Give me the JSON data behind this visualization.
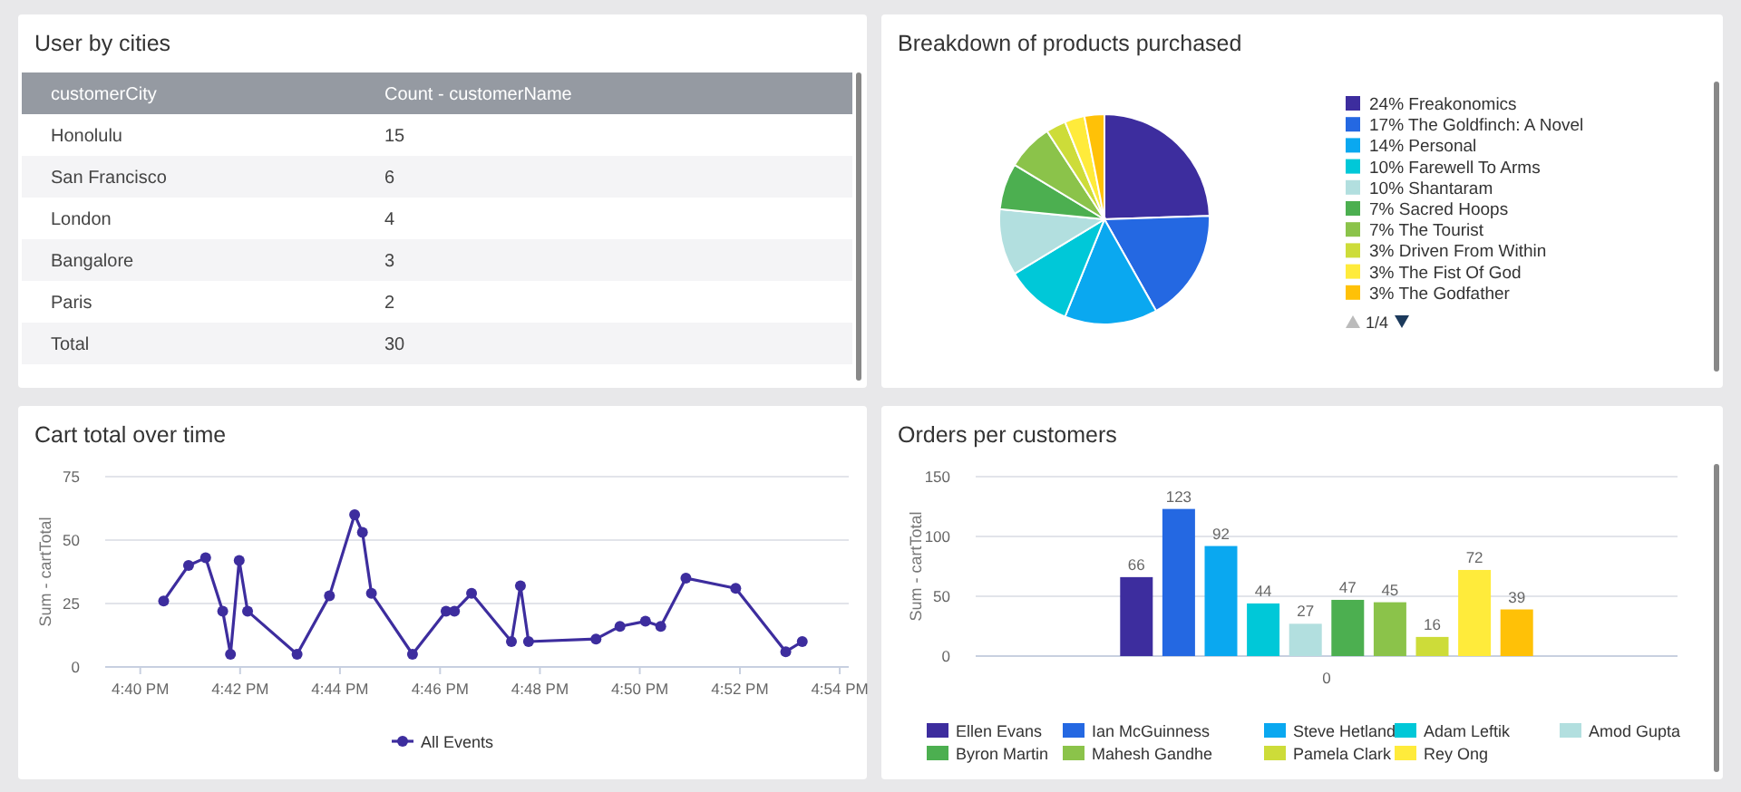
{
  "chart_data": [
    {
      "type": "other",
      "title": "User by cities",
      "xlabel": "customerCity",
      "ylabel": "Count - customerName",
      "categories": [
        "Honolulu",
        "San Francisco",
        "London",
        "Bangalore",
        "Paris",
        "Total"
      ],
      "values": [
        15,
        6,
        4,
        3,
        2,
        30
      ],
      "data_labels": true
    },
    {
      "type": "pie",
      "title": "Breakdown of products purchased",
      "legend": "right",
      "annotations": [
        "1/4"
      ],
      "categories": [
        "Freakonomics",
        "The Goldfinch: A Novel",
        "Personal",
        "Farewell To Arms",
        "Shantaram",
        "Sacred Hoops",
        "The Tourist",
        "Driven From Within",
        "The Fist Of God",
        "The Godfather"
      ],
      "values": [
        24,
        17,
        14,
        10,
        10,
        7,
        7,
        3,
        3,
        3
      ],
      "value_labels": [
        "24%",
        "17%",
        "14%",
        "10%",
        "10%",
        "7%",
        "7%",
        "3%",
        "3%",
        "3%"
      ],
      "colors": [
        "#3d2d9e",
        "#2468e2",
        "#0aa8f0",
        "#00c8d8",
        "#b2dfdf",
        "#4caf50",
        "#8bc34a",
        "#cddc39",
        "#ffeb3b",
        "#ffc107"
      ]
    },
    {
      "type": "line",
      "title": "Cart total over time",
      "ylabel": "Sum - cartTotal",
      "grid": "y",
      "legend": "bottom",
      "marker": "circle",
      "xlim": [
        16.655,
        16.903
      ],
      "xticks": [
        {
          "value": 16.6667,
          "label": "4:40 PM"
        },
        {
          "value": 16.7,
          "label": "4:42 PM"
        },
        {
          "value": 16.7333,
          "label": "4:44 PM"
        },
        {
          "value": 16.7667,
          "label": "4:46 PM"
        },
        {
          "value": 16.8,
          "label": "4:48 PM"
        },
        {
          "value": 16.8333,
          "label": "4:50 PM"
        },
        {
          "value": 16.8667,
          "label": "4:52 PM"
        },
        {
          "value": 16.9,
          "label": "4:54 PM"
        }
      ],
      "ylim": [
        0,
        75
      ],
      "yticks": [
        0,
        25,
        50,
        75
      ],
      "series": [
        {
          "name": "All Events",
          "color": "#3d2d9e",
          "x": [
            16.6745,
            16.6828,
            16.6885,
            16.6942,
            16.6968,
            16.6997,
            16.7025,
            16.719,
            16.7298,
            16.7382,
            16.7408,
            16.7438,
            16.7575,
            16.7687,
            16.7715,
            16.7772,
            16.7905,
            16.7935,
            16.7962,
            16.8187,
            16.8267,
            16.8352,
            16.8403,
            16.8487,
            16.8653,
            16.882,
            16.8875
          ],
          "values": [
            26,
            40,
            43,
            22,
            5,
            42,
            22,
            5,
            28,
            60,
            53,
            29,
            5,
            22,
            22,
            29,
            10,
            32,
            10,
            11,
            16,
            18,
            16,
            35,
            31,
            6,
            10
          ]
        }
      ]
    },
    {
      "type": "bar",
      "title": "Orders per customers",
      "ylabel": "Sum - cartTotal",
      "grid": "y",
      "legend": "bottom",
      "data_labels": true,
      "categories": [
        "0"
      ],
      "ylim": [
        0,
        150
      ],
      "yticks": [
        0,
        50,
        100,
        150
      ],
      "series": [
        {
          "name": "Ellen Evans",
          "color": "#3d2d9e",
          "values": [
            66
          ]
        },
        {
          "name": "Ian McGuinness",
          "color": "#2468e2",
          "values": [
            123
          ]
        },
        {
          "name": "Steve Hetland",
          "color": "#0aa8f0",
          "values": [
            92
          ]
        },
        {
          "name": "Adam Leftik",
          "color": "#00c8d8",
          "values": [
            44
          ]
        },
        {
          "name": "Amod Gupta",
          "color": "#b2dfdf",
          "values": [
            27
          ]
        },
        {
          "name": "Byron Martin",
          "color": "#4caf50",
          "values": [
            47
          ]
        },
        {
          "name": "Mahesh Gandhe",
          "color": "#8bc34a",
          "values": [
            45
          ]
        },
        {
          "name": "Pamela Clark",
          "color": "#cddc39",
          "values": [
            16
          ]
        },
        {
          "name": "Rey Ong",
          "color": "#ffeb3b",
          "values": [
            72
          ]
        },
        {
          "color": "#ffc107",
          "values": [
            39
          ]
        }
      ]
    }
  ]
}
